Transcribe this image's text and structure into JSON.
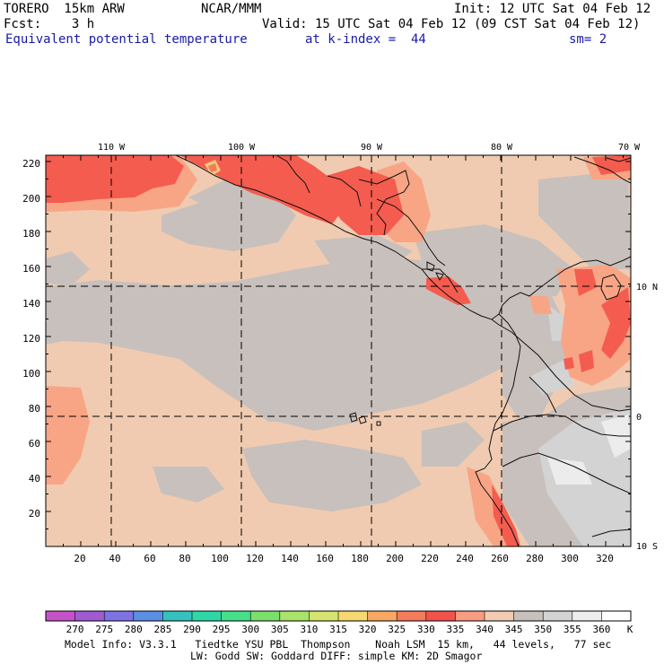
{
  "header": {
    "model": "TORERO  15km ARW",
    "org": "NCAR/MMM",
    "init": "Init: 12 UTC Sat 04 Feb 12",
    "fcst": "Fcst:    3 h",
    "valid": "Valid: 15 UTC Sat 04 Feb 12 (09 CST Sat 04 Feb 12)",
    "field": "Equivalent potential temperature",
    "kindex": "at k-index =  44",
    "smooth": "sm= 2"
  },
  "map": {
    "top_lon_labels": [
      "110 W",
      "100 W",
      "90 W",
      "80 W",
      "70 W"
    ],
    "right_lat_labels": [
      "10 N",
      "0",
      "10 S"
    ],
    "y_ticks": [
      "20",
      "40",
      "60",
      "80",
      "100",
      "120",
      "140",
      "160",
      "180",
      "200",
      "220"
    ],
    "x_ticks": [
      "20",
      "40",
      "60",
      "80",
      "100",
      "120",
      "140",
      "160",
      "180",
      "200",
      "220",
      "240",
      "260",
      "280",
      "300",
      "320"
    ],
    "colors": {
      "base": "#f0cbb1",
      "gray": "#c8c0bc",
      "light_gray": "#d3d3d3",
      "salmon": "#f8a586",
      "red": "#f45c4f",
      "hot": "#f9c87a"
    }
  },
  "colorbar": {
    "labels": [
      "270",
      "275",
      "280",
      "285",
      "290",
      "295",
      "300",
      "305",
      "310",
      "315",
      "320",
      "325",
      "330",
      "335",
      "340",
      "345",
      "350",
      "355",
      "360"
    ],
    "unit": "K",
    "colors": [
      "#c552c9",
      "#a05bd2",
      "#7e72e6",
      "#5b8fe4",
      "#35c1c0",
      "#2ed8a6",
      "#44e08a",
      "#7ae06b",
      "#a9e36a",
      "#d4e46e",
      "#f5d86f",
      "#f8a863",
      "#f47b5c",
      "#f2524a",
      "#f79d82",
      "#f1ccb2",
      "#c8c0bc",
      "#d3d3d3",
      "#ededed",
      "#ffffff"
    ]
  },
  "footer": {
    "line1": "Model Info: V3.3.1   Tiedtke YSU PBL  Thompson    Noah LSM  15 km,   44 levels,   77 sec",
    "line2": "LW: Godd SW: Goddard DIFF: simple KM: 2D Smagor"
  }
}
